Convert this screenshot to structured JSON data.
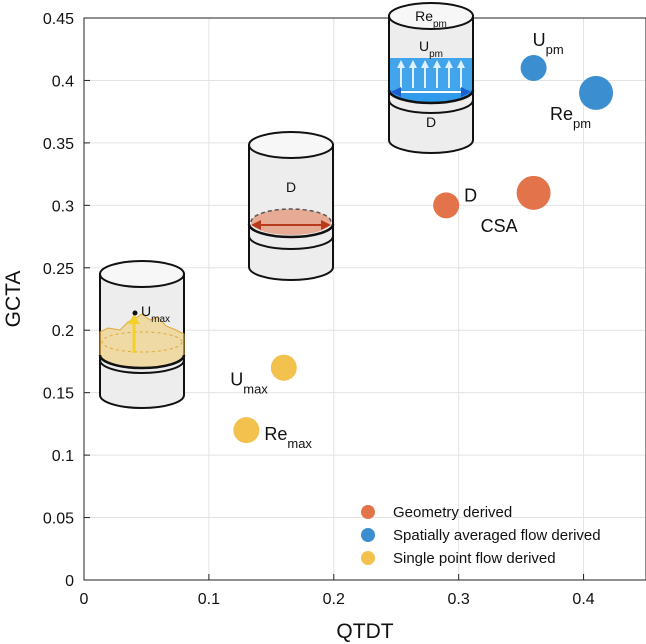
{
  "chart_data": {
    "type": "scatter",
    "title": "",
    "xlabel": "QTDT",
    "ylabel": "GCTA",
    "xlim": [
      0,
      0.45
    ],
    "ylim": [
      0,
      0.45
    ],
    "grid": true,
    "x_ticks": [
      "0",
      "0.1",
      "0.2",
      "0.3",
      "0.4"
    ],
    "x_tick_values": [
      0,
      0.1,
      0.2,
      0.3,
      0.4
    ],
    "y_ticks": [
      "0",
      "0.05",
      "0.1",
      "0.15",
      "0.2",
      "0.25",
      "0.3",
      "0.35",
      "0.4",
      "0.45"
    ],
    "y_tick_values": [
      0,
      0.05,
      0.1,
      0.15,
      0.2,
      0.25,
      0.3,
      0.35,
      0.4,
      0.45
    ],
    "legend_position": "bottom-right",
    "series": [
      {
        "name": "Geometry derived",
        "color": "#E2734A",
        "points": [
          {
            "x": 0.29,
            "y": 0.3,
            "label": "D",
            "sub": "",
            "size": "small"
          },
          {
            "x": 0.36,
            "y": 0.31,
            "label": "CSA",
            "sub": "",
            "size": "large"
          }
        ]
      },
      {
        "name": "Spatially averaged flow derived",
        "color": "#3B8FD0",
        "points": [
          {
            "x": 0.36,
            "y": 0.41,
            "label": "U",
            "sub": "pm",
            "size": "small"
          },
          {
            "x": 0.41,
            "y": 0.39,
            "label": "Re",
            "sub": "pm",
            "size": "large"
          }
        ]
      },
      {
        "name": "Single point flow derived",
        "color": "#F2C14E",
        "points": [
          {
            "x": 0.16,
            "y": 0.17,
            "label": "U",
            "sub": "max",
            "size": "small"
          },
          {
            "x": 0.13,
            "y": 0.12,
            "label": "Re",
            "sub": "max",
            "size": "small"
          }
        ]
      }
    ],
    "illustrations": {
      "single_point": {
        "label_main": "U",
        "label_sub": "max"
      },
      "geometry": {
        "label": "D"
      },
      "spatial": {
        "top_main": "Re",
        "top_sub": "pm",
        "mid_main": "U",
        "mid_sub": "pm",
        "bottom": "D"
      }
    }
  }
}
